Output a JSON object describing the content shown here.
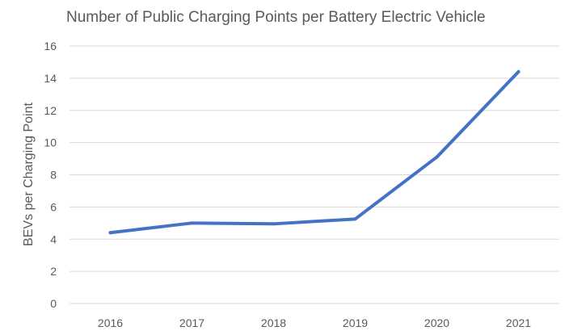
{
  "chart_data": {
    "type": "line",
    "title": "Number of Public Charging Points per Battery Electric Vehicle",
    "xlabel": "",
    "ylabel": "BEVs per Charging Point",
    "categories": [
      "2016",
      "2017",
      "2018",
      "2019",
      "2020",
      "2021"
    ],
    "series": [
      {
        "name": "BEVs per Charging Point",
        "values": [
          4.4,
          5.0,
          4.95,
          5.25,
          9.1,
          14.4
        ]
      }
    ],
    "ylim": [
      0,
      16
    ],
    "yticks": [
      0,
      2,
      4,
      6,
      8,
      10,
      12,
      14,
      16
    ],
    "grid": true,
    "legend": "none",
    "colors": {
      "line": "#4472c4",
      "grid": "#d9d9d9",
      "text": "#595959"
    }
  }
}
